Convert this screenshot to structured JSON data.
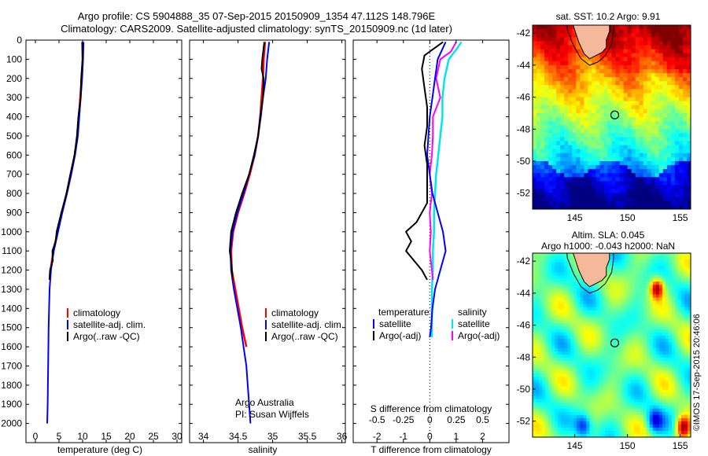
{
  "header": {
    "line1": "Argo profile: CS 5904888_35 07-Sep-2015 20150909_1354 47.112S 148.796E",
    "line2": "Climatology: CARS2009. Satellite-adjusted climatology: synTS_20150909.nc (1d later)"
  },
  "colors": {
    "climatology": "#ff0000",
    "satellite": "#0000ff",
    "argo": "#000000",
    "sal_satellite": "#00e5ee",
    "sal_argo": "#ff00ff",
    "land": "#f5b89a"
  },
  "chart_data": [
    {
      "type": "line",
      "name": "temperature-profile",
      "xlabel": "temperature (deg C)",
      "ylabel": "",
      "xlim": [
        -2,
        31
      ],
      "ylim": [
        2100,
        0
      ],
      "xticks": [
        "0",
        "5",
        "10",
        "15",
        "20",
        "25",
        "30"
      ],
      "xtick_values": [
        0,
        5,
        10,
        15,
        20,
        25,
        30
      ],
      "yticks": [
        "0",
        "100",
        "200",
        "300",
        "400",
        "500",
        "600",
        "700",
        "800",
        "900",
        "1000",
        "1100",
        "1200",
        "1300",
        "1400",
        "1500",
        "1600",
        "1700",
        "1800",
        "1900",
        "2000"
      ],
      "legend": [
        "climatology",
        "satellite-adj. clim.",
        "Argo(..raw -QC)"
      ],
      "series": [
        {
          "name": "climatology",
          "depth": [
            10,
            100,
            200,
            300,
            400,
            500,
            600,
            700,
            800,
            900,
            1000,
            1100,
            1200,
            1250
          ],
          "values": [
            10.0,
            10.0,
            9.8,
            9.5,
            9.2,
            8.9,
            8.3,
            7.5,
            6.6,
            5.6,
            4.7,
            3.8,
            3.2,
            3.0
          ]
        },
        {
          "name": "satellite-adj. clim.",
          "depth": [
            10,
            100,
            200,
            300,
            400,
            500,
            600,
            700,
            800,
            900,
            1000,
            1100,
            1200,
            1300,
            1500,
            1700,
            1900,
            2000
          ],
          "values": [
            10.2,
            10.1,
            9.9,
            9.6,
            9.3,
            9.0,
            8.4,
            7.6,
            6.7,
            5.7,
            4.8,
            3.9,
            3.3,
            3.0,
            2.8,
            2.7,
            2.6,
            2.5
          ]
        },
        {
          "name": "Argo(..raw -QC)",
          "depth": [
            10,
            100,
            200,
            300,
            400,
            500,
            600,
            700,
            800,
            900,
            1000,
            1050,
            1100,
            1150,
            1200,
            1250
          ],
          "values": [
            9.9,
            10.0,
            9.7,
            9.6,
            9.1,
            8.8,
            8.3,
            7.4,
            6.6,
            5.5,
            4.5,
            4.3,
            3.6,
            3.7,
            3.1,
            3.0
          ]
        }
      ]
    },
    {
      "type": "line",
      "name": "salinity-profile",
      "xlabel": "salinity",
      "ylabel": "",
      "xlim": [
        33.8,
        36.05
      ],
      "ylim": [
        2100,
        0
      ],
      "xticks": [
        "34",
        "34.5",
        "35",
        "35.5",
        "36"
      ],
      "xtick_values": [
        34,
        34.5,
        35,
        35.5,
        36
      ],
      "legend": [
        "climatology",
        "satellite-adj. clim.",
        "Argo(..raw -QC)"
      ],
      "annotations": [
        "Argo Australia",
        "PI: Susan Wijffels"
      ],
      "series": [
        {
          "name": "climatology",
          "depth": [
            10,
            100,
            200,
            300,
            400,
            500,
            600,
            700,
            800,
            900,
            1000,
            1100,
            1200,
            1300,
            1400,
            1500,
            1600
          ],
          "values": [
            34.89,
            34.87,
            34.86,
            34.84,
            34.82,
            34.79,
            34.74,
            34.67,
            34.59,
            34.5,
            34.43,
            34.4,
            34.41,
            34.46,
            34.51,
            34.56,
            34.62
          ]
        },
        {
          "name": "satellite-adj. clim.",
          "depth": [
            10,
            100,
            200,
            300,
            400,
            500,
            600,
            700,
            800,
            900,
            1000,
            1100,
            1200,
            1300,
            1400,
            1500,
            1600,
            1700,
            1800,
            1900,
            2000
          ],
          "values": [
            34.95,
            34.92,
            34.9,
            34.86,
            34.83,
            34.79,
            34.74,
            34.66,
            34.58,
            34.49,
            34.42,
            34.39,
            34.4,
            34.44,
            34.49,
            34.54,
            34.58,
            34.62,
            34.64,
            34.66,
            34.68
          ]
        },
        {
          "name": "Argo(..raw -QC)",
          "depth": [
            10,
            100,
            150,
            200,
            300,
            400,
            500,
            600,
            700,
            800,
            900,
            1000,
            1050,
            1100,
            1150,
            1200,
            1250
          ],
          "values": [
            34.88,
            34.85,
            34.84,
            34.87,
            34.86,
            34.82,
            34.79,
            34.73,
            34.66,
            34.56,
            34.47,
            34.4,
            34.39,
            34.38,
            34.4,
            34.41,
            34.42
          ]
        }
      ]
    },
    {
      "type": "line",
      "name": "difference-profile",
      "xlabel": "T difference from climatology",
      "top_axis_label": "S difference from climatology",
      "xlim": [
        -2.9,
        3.0
      ],
      "ylim": [
        2100,
        0
      ],
      "xticks": [
        "-2",
        "-1",
        "0",
        "1",
        "2"
      ],
      "xtick_values": [
        -2,
        -1,
        0,
        1,
        2
      ],
      "top_ticks": [
        "-0.5",
        "-0.25",
        "0",
        "0.25",
        "0.5"
      ],
      "top_tick_values": [
        -0.5,
        -0.25,
        0,
        0.25,
        0.5
      ],
      "legend_titles": [
        "temperature",
        "salinity"
      ],
      "legend": [
        "satellite",
        "Argo(-adj)",
        "satellite",
        "Argo(-adj)"
      ],
      "series": [
        {
          "name": "temperature satellite",
          "depth": [
            10,
            100,
            200,
            300,
            400,
            500,
            600,
            700,
            800,
            900,
            1000,
            1100,
            1200,
            1300,
            1400,
            1500,
            1550
          ],
          "values": [
            0.6,
            0.3,
            0.2,
            0.1,
            0.0,
            -0.05,
            -0.1,
            0.0,
            0.1,
            0.3,
            0.5,
            0.6,
            0.4,
            0.2,
            0.1,
            0.05,
            0.0
          ]
        },
        {
          "name": "temperature Argo(-adj)",
          "depth": [
            10,
            80,
            150,
            250,
            350,
            450,
            550,
            650,
            750,
            850,
            950,
            1000,
            1050,
            1100,
            1150,
            1200,
            1250
          ],
          "values": [
            0.5,
            -0.2,
            -0.3,
            -0.2,
            -0.1,
            -0.1,
            -0.2,
            -0.1,
            -0.1,
            -0.1,
            -0.5,
            -0.9,
            -0.7,
            -0.9,
            -0.6,
            -0.3,
            -0.1
          ]
        },
        {
          "name": "salinity satellite",
          "depth": [
            10,
            50,
            100,
            200,
            300,
            400,
            500,
            600,
            700,
            800,
            900,
            1000,
            1100,
            1200,
            1300,
            1400,
            1500,
            1550
          ],
          "values": [
            0.3,
            0.25,
            0.18,
            0.14,
            0.12,
            0.12,
            0.1,
            0.08,
            0.06,
            0.05,
            0.04,
            0.04,
            0.03,
            0.03,
            0.02,
            0.02,
            0.02,
            0.02
          ]
        },
        {
          "name": "salinity Argo(-adj)",
          "depth": [
            10,
            60,
            100,
            200,
            300,
            400,
            500,
            600,
            700,
            800,
            900,
            1000,
            1100,
            1200,
            1250
          ],
          "values": [
            0.25,
            0.2,
            0.1,
            0.06,
            0.1,
            0.03,
            0.03,
            0.02,
            0.0,
            0.02,
            0.0,
            0.01,
            0.0,
            0.02,
            0.03
          ]
        }
      ]
    },
    {
      "type": "heatmap",
      "name": "sst-map",
      "title": "sat. SST: 10.2  Argo: 9.91",
      "xlim": [
        141,
        156
      ],
      "ylim": [
        -53,
        -41.5
      ],
      "xticks": [
        "145",
        "150",
        "155"
      ],
      "xtick_values": [
        145,
        150,
        155
      ],
      "yticks": [
        "-42",
        "-44",
        "-46",
        "-48",
        "-50",
        "-52"
      ],
      "ytick_values": [
        -42,
        -44,
        -46,
        -48,
        -50,
        -52
      ],
      "marker": {
        "lon": 148.796,
        "lat": -47.112
      }
    },
    {
      "type": "heatmap",
      "name": "sla-map",
      "title_line1": "Altim. SLA: 0.045",
      "title_line2": "Argo h1000: -0.043 h2000: NaN",
      "xlim": [
        141,
        156
      ],
      "ylim": [
        -53,
        -41.5
      ],
      "xticks": [
        "145",
        "150",
        "155"
      ],
      "xtick_values": [
        145,
        150,
        155
      ],
      "yticks": [
        "-42",
        "-44",
        "-46",
        "-48",
        "-50",
        "-52"
      ],
      "ytick_values": [
        -42,
        -44,
        -46,
        -48,
        -50,
        -52
      ],
      "marker": {
        "lon": 148.796,
        "lat": -47.112
      },
      "side_label": "©IMOS 17-Sep-2015 20:46:06"
    }
  ]
}
